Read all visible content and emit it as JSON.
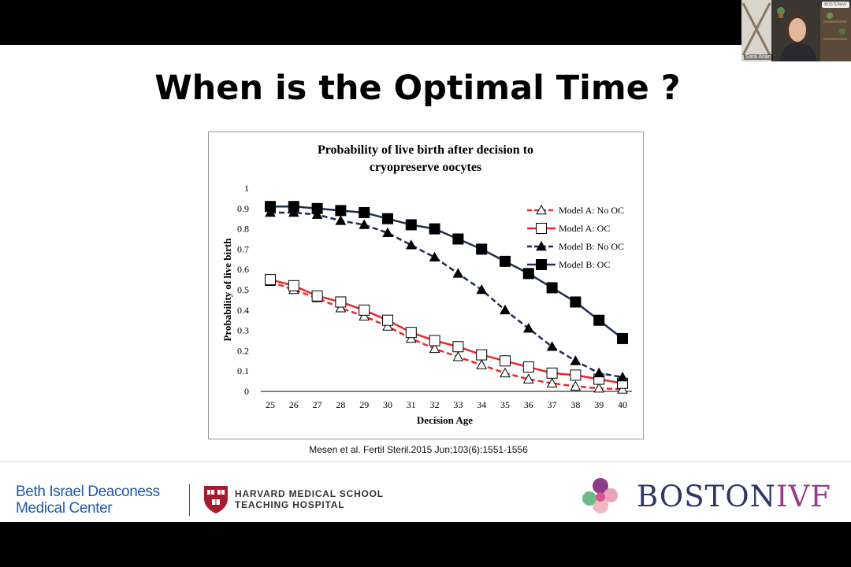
{
  "slide": {
    "title": "When is the Optimal Time ?",
    "citation": "Mesen et al. Fertil Steril.2015 Jun;103(6):1551-1556"
  },
  "footer": {
    "bidmc_line1": "Beth Israel Deaconess",
    "bidmc_line2": "Medical Center",
    "hms_line1": "HARVARD MEDICAL SCHOOL",
    "hms_line2": "TEACHING HOSPITAL",
    "bivf_part1": "BOSTON",
    "bivf_part2": "IVF"
  },
  "video": {
    "participant_name": "Sara Arian",
    "tile_logo": "BOSTONIVF"
  },
  "colors": {
    "red": "#e8282a",
    "navy": "#1f2d4e",
    "bidmc_blue": "#1f5aa8",
    "bivf_navy": "#2d3666",
    "bivf_purple": "#9b3b8e"
  },
  "chart_data": {
    "type": "line",
    "title_line1": "Probability of live birth after decision to",
    "title_line2": "cryopreserve oocytes",
    "xlabel": "Decision Age",
    "ylabel": "Probability of live birth",
    "ylim": [
      0,
      1
    ],
    "yticks": [
      "0",
      "0.1",
      "0.2",
      "0.3",
      "0.4",
      "0.5",
      "0.6",
      "0.7",
      "0.8",
      "0.9",
      "1"
    ],
    "x": [
      25,
      26,
      27,
      28,
      29,
      30,
      31,
      32,
      33,
      34,
      35,
      36,
      37,
      38,
      39,
      40
    ],
    "legend_position": "top-right",
    "grid": false,
    "series": [
      {
        "name": "Model A: No OC",
        "color": "#e8282a",
        "dash": true,
        "marker": "open-triangle",
        "values": [
          0.54,
          0.5,
          0.46,
          0.41,
          0.37,
          0.32,
          0.26,
          0.21,
          0.17,
          0.13,
          0.09,
          0.06,
          0.04,
          0.025,
          0.015,
          0.01
        ]
      },
      {
        "name": "Model A: OC",
        "color": "#e8282a",
        "dash": false,
        "marker": "open-square",
        "values": [
          0.55,
          0.52,
          0.47,
          0.44,
          0.4,
          0.35,
          0.29,
          0.25,
          0.22,
          0.18,
          0.15,
          0.12,
          0.09,
          0.08,
          0.06,
          0.04
        ]
      },
      {
        "name": "Model B: No OC",
        "color": "#1f2d4e",
        "dash": true,
        "marker": "filled-triangle",
        "values": [
          0.88,
          0.88,
          0.87,
          0.84,
          0.82,
          0.78,
          0.72,
          0.66,
          0.58,
          0.5,
          0.4,
          0.31,
          0.22,
          0.15,
          0.09,
          0.07
        ]
      },
      {
        "name": "Model B: OC",
        "color": "#1f2d4e",
        "dash": false,
        "marker": "filled-square",
        "values": [
          0.91,
          0.91,
          0.9,
          0.89,
          0.88,
          0.85,
          0.82,
          0.8,
          0.75,
          0.7,
          0.64,
          0.58,
          0.51,
          0.44,
          0.35,
          0.26
        ]
      }
    ]
  }
}
